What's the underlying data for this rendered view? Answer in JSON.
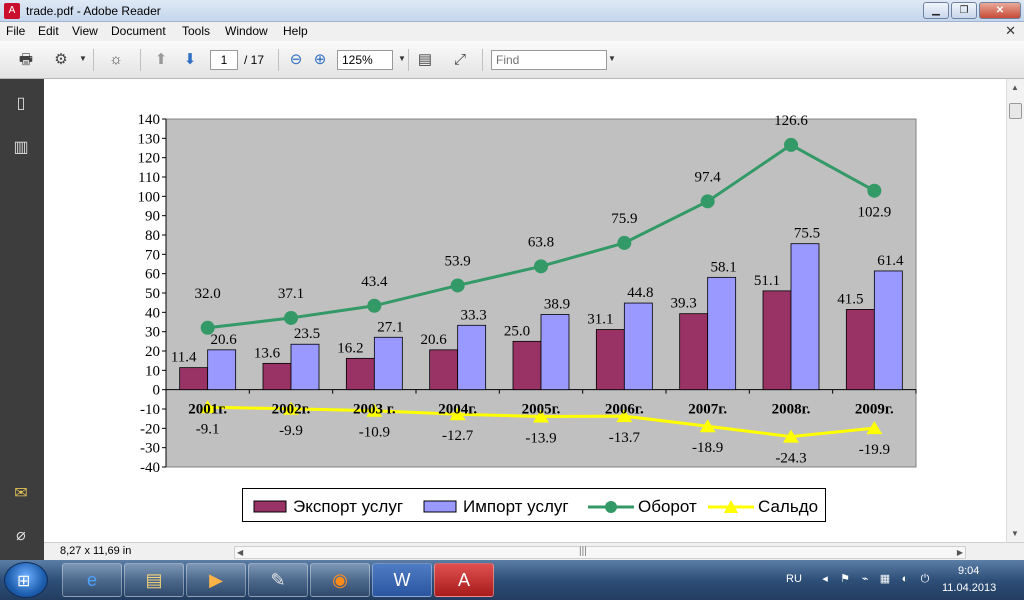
{
  "window": {
    "title": "trade.pdf - Adobe Reader",
    "icon": "pdf-icon",
    "controls": [
      "minimize",
      "maximize",
      "close"
    ]
  },
  "menu": {
    "items": [
      "File",
      "Edit",
      "View",
      "Document",
      "Tools",
      "Window",
      "Help"
    ]
  },
  "toolbar": {
    "page_current": "1",
    "page_total": "/ 17",
    "zoom": "125%",
    "find_placeholder": "Find"
  },
  "status": {
    "page_size": "8,27 x 11,69 in"
  },
  "chart_data": {
    "type": "bar",
    "categories": [
      "2001г.",
      "2002г.",
      "2003 г.",
      "2004г.",
      "2005г.",
      "2006г.",
      "2007г.",
      "2008г.",
      "2009г."
    ],
    "ylim": [
      -40,
      140
    ],
    "y_ticks": [
      140,
      130,
      120,
      110,
      100,
      90,
      80,
      70,
      60,
      50,
      40,
      30,
      20,
      10,
      0,
      -10,
      -20,
      -30,
      -40
    ],
    "grid": false,
    "legend_position": "bottom",
    "series": [
      {
        "name": "Экспорт услуг",
        "kind": "bar",
        "color": "#993366",
        "values": [
          11.4,
          13.6,
          16.2,
          20.6,
          25.0,
          31.1,
          39.3,
          51.1,
          41.5
        ],
        "labels": [
          "11.4",
          "13.6",
          "16.2",
          "20.6",
          "25.0",
          "31.1",
          "39.3",
          "51.1",
          "41.5"
        ]
      },
      {
        "name": "Импорт услуг",
        "kind": "bar",
        "color": "#9999ff",
        "values": [
          20.6,
          23.5,
          27.1,
          33.3,
          38.9,
          44.8,
          58.1,
          75.5,
          61.4
        ],
        "labels": [
          "20.6",
          "23.5",
          "27.1",
          "33.3",
          "38.9",
          "44.8",
          "58.1",
          "75.5",
          "61.4"
        ]
      },
      {
        "name": "Оборот",
        "kind": "line",
        "marker": "circle",
        "color": "#339966",
        "values": [
          32.0,
          37.1,
          43.4,
          53.9,
          63.8,
          75.9,
          97.4,
          126.6,
          102.9
        ],
        "labels": [
          "32.0",
          "37.1",
          "43.4",
          "53.9",
          "63.8",
          "75.9",
          "97.4",
          "126.6",
          "102.9"
        ]
      },
      {
        "name": "Сальдо",
        "kind": "line",
        "marker": "triangle",
        "color": "#ffff00",
        "values": [
          -9.1,
          -9.9,
          -10.9,
          -12.7,
          -13.9,
          -13.7,
          -18.9,
          -24.3,
          -19.9
        ],
        "labels": [
          "-9.1",
          "-9.9",
          "-10.9",
          "-12.7",
          "-13.9",
          "-13.7",
          "-18.9",
          "-24.3",
          "-19.9"
        ]
      }
    ],
    "plot_background": "#c0c0c0"
  },
  "taskbar": {
    "apps": [
      "ie-icon",
      "explorer-icon",
      "media-player-icon",
      "paint-icon",
      "firefox-icon",
      "word-icon",
      "adobe-reader-icon"
    ],
    "language": "RU",
    "time": "9:04",
    "date": "11.04.2013"
  }
}
